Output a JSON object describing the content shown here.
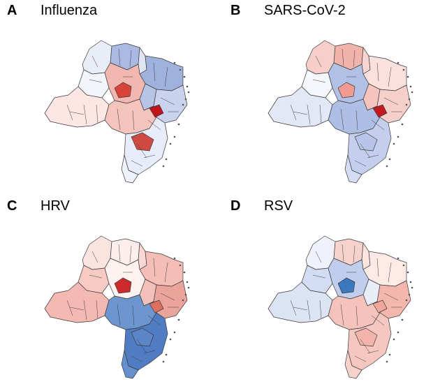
{
  "panels": [
    {
      "letter": "A",
      "title": "Influenza",
      "regions": {
        "north_west": "#e9edf8",
        "north_center_left": "#aab9e2",
        "north_center_right": "#dfe5f5",
        "north_east": "#9fb1dd",
        "center_west": "#f3f5fc",
        "center": "#f2b7b0",
        "center_hotspot": "#d9443a",
        "center_east": "#b7c4e6",
        "east_coast": "#c9d3ee",
        "east_hotspot": "#c0141b",
        "west": "#fde6e3",
        "south_center": "#f5c4bd",
        "south_hotspot": "#cf4a40",
        "south": "#e7ecf8",
        "south_tip": "#eef2fa"
      }
    },
    {
      "letter": "B",
      "title": "SARS-CoV-2",
      "regions": {
        "north_west": "#f7cfca",
        "north_center_left": "#f2b3ab",
        "north_center_right": "#f7d4cf",
        "north_east": "#fbe1dd",
        "center_west": "#f6f7fc",
        "center": "#b1c0e5",
        "center_hotspot": "#f09b92",
        "center_east": "#f7c4bd",
        "east_coast": "#f5d0cb",
        "east_hotspot": "#c21a20",
        "west": "#e2e8f6",
        "south_center": "#afbee4",
        "south_hotspot": "#b7c5e8",
        "south": "#c4cfed",
        "south_tip": "#d3dcf2"
      }
    },
    {
      "letter": "C",
      "title": "HRV",
      "regions": {
        "north_west": "#fbe3e0",
        "north_center_left": "#fdeeec",
        "north_center_right": "#f9d7d2",
        "north_east": "#f4bdb6",
        "center_west": "#f7cac4",
        "center": "#fff2f0",
        "center_hotspot": "#cc2a2c",
        "center_east": "#f4bfb8",
        "east_coast": "#eba49b",
        "east_hotspot": "#de6f60",
        "west": "#f3b9b2",
        "south_center": "#6d96cf",
        "south_hotspot": "#5a85c6",
        "south": "#4f7cc2",
        "south_tip": "#6590cc"
      }
    },
    {
      "letter": "D",
      "title": "RSV",
      "regions": {
        "north_west": "#eff2fb",
        "north_center_left": "#f6d2cd",
        "north_center_right": "#fbe4e1",
        "north_east": "#fde9e6",
        "center_west": "#d2dcf2",
        "center": "#c1cdec",
        "center_hotspot": "#3b78bd",
        "center_east": "#e8edf8",
        "east_coast": "#f3b7ae",
        "east_hotspot": "#f1a69c",
        "west": "#dbe3f5",
        "south_center": "#f5c3bc",
        "south_hotspot": "#f3b4ac",
        "south": "#f6c7c0",
        "south_tip": "#f8d2cc"
      }
    }
  ]
}
